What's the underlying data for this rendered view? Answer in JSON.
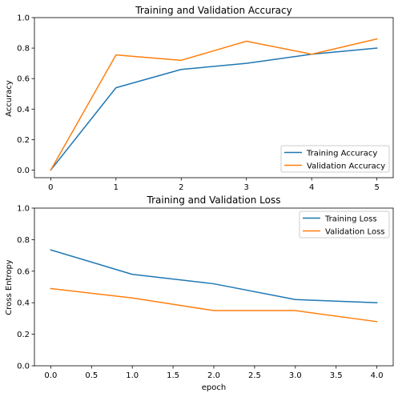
{
  "chart_data": [
    {
      "type": "line",
      "title": "Training and Validation Accuracy",
      "xlabel": "",
      "ylabel": "Accuracy",
      "xlim": [
        -0.25,
        5.25
      ],
      "ylim": [
        -0.05,
        1.0
      ],
      "xticks": [
        0,
        1,
        2,
        3,
        4,
        5
      ],
      "xtick_labels": [
        "0",
        "1",
        "2",
        "3",
        "4",
        "5"
      ],
      "yticks": [
        0.0,
        0.2,
        0.4,
        0.6,
        0.8,
        1.0
      ],
      "ytick_labels": [
        "0.0",
        "0.2",
        "0.4",
        "0.6",
        "0.8",
        "1.0"
      ],
      "grid": false,
      "legend_position": "lower-right",
      "x": [
        0,
        1,
        2,
        3,
        4,
        5
      ],
      "series": [
        {
          "name": "Training Accuracy",
          "color": "#1f77b4",
          "values": [
            0.0,
            0.54,
            0.66,
            0.7,
            0.76,
            0.8
          ]
        },
        {
          "name": "Validation Accuracy",
          "color": "#ff7f0e",
          "values": [
            0.0,
            0.755,
            0.72,
            0.845,
            0.76,
            0.86
          ]
        }
      ]
    },
    {
      "type": "line",
      "title": "Training and Validation Loss",
      "xlabel": "epoch",
      "ylabel": "Cross Entropy",
      "xlim": [
        -0.2,
        4.2
      ],
      "ylim": [
        0.0,
        1.0
      ],
      "xticks": [
        0.0,
        0.5,
        1.0,
        1.5,
        2.0,
        2.5,
        3.0,
        3.5,
        4.0
      ],
      "xtick_labels": [
        "0.0",
        "0.5",
        "1.0",
        "1.5",
        "2.0",
        "2.5",
        "3.0",
        "3.5",
        "4.0"
      ],
      "yticks": [
        0.0,
        0.2,
        0.4,
        0.6,
        0.8,
        1.0
      ],
      "ytick_labels": [
        "0.0",
        "0.2",
        "0.4",
        "0.6",
        "0.8",
        "1.0"
      ],
      "grid": false,
      "legend_position": "upper-right",
      "x": [
        0,
        1,
        2,
        3,
        4
      ],
      "series": [
        {
          "name": "Training Loss",
          "color": "#1f77b4",
          "values": [
            0.735,
            0.58,
            0.52,
            0.42,
            0.4
          ]
        },
        {
          "name": "Validation Loss",
          "color": "#ff7f0e",
          "values": [
            0.49,
            0.43,
            0.35,
            0.35,
            0.28
          ]
        }
      ]
    }
  ]
}
